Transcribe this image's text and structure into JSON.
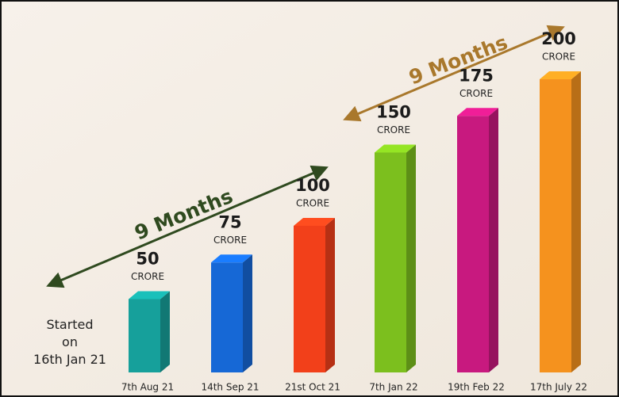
{
  "chart_data": {
    "type": "bar3d",
    "categories": [
      "7th Aug 21",
      "14th Sep 21",
      "21st Oct 21",
      "7th Jan 22",
      "19th Feb 22",
      "17th July 22"
    ],
    "values": [
      50,
      75,
      100,
      150,
      175,
      200
    ],
    "unit_label": "CRORE",
    "colors": [
      "#16a09b",
      "#1668d6",
      "#f2401a",
      "#7cbf1e",
      "#c8197f",
      "#f5921e"
    ],
    "annotations": {
      "start": "Started on 16th Jan 21",
      "first_period": "9 Months",
      "second_period": "9 Months"
    }
  }
}
